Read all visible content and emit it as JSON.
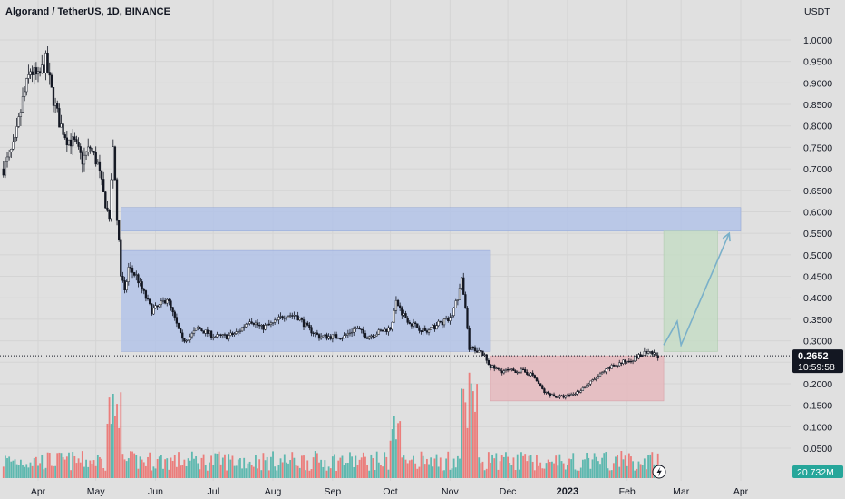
{
  "header": {
    "symbol_title": "Algorand / TetherUS, 1D, BINANCE"
  },
  "axis": {
    "currency": "USDT"
  },
  "colors": {
    "background": "#e0e0e0",
    "candle": "#131722",
    "volume_up": "#26a69a",
    "volume_down": "#ef5350",
    "blue_zone": "#b3c3e8",
    "red_zone": "#e5b8bd",
    "green_zone": "#c6dcc6",
    "arrow": "#7ab0c9",
    "price_badge": "#131722",
    "volume_badge": "#26a69a"
  },
  "badges": {
    "last_price": "0.2652",
    "countdown": "10:59:58",
    "volume": "20.732M"
  },
  "chart_data": {
    "type": "candlestick",
    "title": "Algorand / TetherUS, 1D, BINANCE",
    "ylabel": "USDT",
    "ylim": [
      0.0,
      1.05
    ],
    "y_ticks": [
      "1.0000",
      "0.9500",
      "0.9000",
      "0.8500",
      "0.8000",
      "0.7500",
      "0.7000",
      "0.6500",
      "0.6000",
      "0.5500",
      "0.5000",
      "0.4500",
      "0.4000",
      "0.3500",
      "0.3000",
      "0.2500",
      "0.2000",
      "0.1500",
      "0.1000",
      "0.0500"
    ],
    "y_tick_values": [
      1.0,
      0.95,
      0.9,
      0.85,
      0.8,
      0.75,
      0.7,
      0.65,
      0.6,
      0.55,
      0.5,
      0.45,
      0.4,
      0.35,
      0.3,
      0.25,
      0.2,
      0.15,
      0.1,
      0.05
    ],
    "x_ticks": [
      {
        "label": "Apr",
        "date": "2022-04-01",
        "bold": false
      },
      {
        "label": "May",
        "date": "2022-05-01",
        "bold": false
      },
      {
        "label": "Jun",
        "date": "2022-06-01",
        "bold": false
      },
      {
        "label": "Jul",
        "date": "2022-07-01",
        "bold": false
      },
      {
        "label": "Aug",
        "date": "2022-08-01",
        "bold": false
      },
      {
        "label": "Sep",
        "date": "2022-09-01",
        "bold": false
      },
      {
        "label": "Oct",
        "date": "2022-10-01",
        "bold": false
      },
      {
        "label": "Nov",
        "date": "2022-11-01",
        "bold": false
      },
      {
        "label": "Dec",
        "date": "2022-12-01",
        "bold": false
      },
      {
        "label": "2023",
        "date": "2023-01-01",
        "bold": true
      },
      {
        "label": "Feb",
        "date": "2023-02-01",
        "bold": false
      },
      {
        "label": "Mar",
        "date": "2023-03-01",
        "bold": false
      },
      {
        "label": "Apr",
        "date": "2023-04-01",
        "bold": false
      }
    ],
    "price_path": [
      [
        "2022-03-14",
        0.7
      ],
      [
        "2022-03-20",
        0.76
      ],
      [
        "2022-03-24",
        0.86
      ],
      [
        "2022-03-28",
        0.93
      ],
      [
        "2022-04-01",
        0.91
      ],
      [
        "2022-04-05",
        0.95
      ],
      [
        "2022-04-08",
        0.88
      ],
      [
        "2022-04-12",
        0.81
      ],
      [
        "2022-04-16",
        0.77
      ],
      [
        "2022-04-20",
        0.76
      ],
      [
        "2022-04-24",
        0.72
      ],
      [
        "2022-04-28",
        0.75
      ],
      [
        "2022-05-02",
        0.71
      ],
      [
        "2022-05-05",
        0.64
      ],
      [
        "2022-05-08",
        0.58
      ],
      [
        "2022-05-10",
        0.76
      ],
      [
        "2022-05-12",
        0.59
      ],
      [
        "2022-05-14",
        0.46
      ],
      [
        "2022-05-16",
        0.41
      ],
      [
        "2022-05-18",
        0.47
      ],
      [
        "2022-05-22",
        0.45
      ],
      [
        "2022-05-26",
        0.41
      ],
      [
        "2022-05-30",
        0.37
      ],
      [
        "2022-06-03",
        0.38
      ],
      [
        "2022-06-07",
        0.4
      ],
      [
        "2022-06-11",
        0.35
      ],
      [
        "2022-06-15",
        0.3
      ],
      [
        "2022-06-19",
        0.31
      ],
      [
        "2022-06-23",
        0.33
      ],
      [
        "2022-06-27",
        0.32
      ],
      [
        "2022-07-02",
        0.31
      ],
      [
        "2022-07-08",
        0.31
      ],
      [
        "2022-07-14",
        0.32
      ],
      [
        "2022-07-20",
        0.35
      ],
      [
        "2022-07-26",
        0.33
      ],
      [
        "2022-08-01",
        0.34
      ],
      [
        "2022-08-07",
        0.36
      ],
      [
        "2022-08-13",
        0.36
      ],
      [
        "2022-08-19",
        0.33
      ],
      [
        "2022-08-25",
        0.31
      ],
      [
        "2022-09-01",
        0.31
      ],
      [
        "2022-09-07",
        0.31
      ],
      [
        "2022-09-13",
        0.33
      ],
      [
        "2022-09-19",
        0.31
      ],
      [
        "2022-09-25",
        0.32
      ],
      [
        "2022-10-01",
        0.33
      ],
      [
        "2022-10-04",
        0.39
      ],
      [
        "2022-10-08",
        0.36
      ],
      [
        "2022-10-12",
        0.34
      ],
      [
        "2022-10-16",
        0.33
      ],
      [
        "2022-10-20",
        0.32
      ],
      [
        "2022-10-26",
        0.34
      ],
      [
        "2022-11-01",
        0.35
      ],
      [
        "2022-11-05",
        0.4
      ],
      [
        "2022-11-07",
        0.44
      ],
      [
        "2022-11-09",
        0.37
      ],
      [
        "2022-11-11",
        0.28
      ],
      [
        "2022-11-14",
        0.28
      ],
      [
        "2022-11-18",
        0.27
      ],
      [
        "2022-11-22",
        0.24
      ],
      [
        "2022-11-27",
        0.23
      ],
      [
        "2022-12-02",
        0.23
      ],
      [
        "2022-12-08",
        0.23
      ],
      [
        "2022-12-14",
        0.22
      ],
      [
        "2022-12-20",
        0.18
      ],
      [
        "2022-12-26",
        0.17
      ],
      [
        "2022-12-31",
        0.17
      ],
      [
        "2023-01-06",
        0.18
      ],
      [
        "2023-01-12",
        0.2
      ],
      [
        "2023-01-18",
        0.22
      ],
      [
        "2023-01-24",
        0.24
      ],
      [
        "2023-01-30",
        0.25
      ],
      [
        "2023-02-05",
        0.26
      ],
      [
        "2023-02-10",
        0.27
      ],
      [
        "2023-02-14",
        0.27
      ],
      [
        "2023-02-17",
        0.265
      ]
    ],
    "last_price": 0.2652,
    "annotations": [
      {
        "type": "zone",
        "color": "blue",
        "x_start": "2022-05-14",
        "x_end": "2023-04-01",
        "y_low": 0.555,
        "y_high": 0.61
      },
      {
        "type": "zone",
        "color": "blue",
        "x_start": "2022-05-14",
        "x_end": "2022-11-22",
        "y_low": 0.275,
        "y_high": 0.51
      },
      {
        "type": "zone",
        "color": "red",
        "x_start": "2022-11-22",
        "x_end": "2023-02-20",
        "y_low": 0.16,
        "y_high": 0.265
      },
      {
        "type": "zone",
        "color": "green",
        "x_start": "2023-02-20",
        "x_end": "2023-03-20",
        "y_low": 0.275,
        "y_high": 0.555
      },
      {
        "type": "projection",
        "points": [
          [
            "2023-02-20",
            0.29
          ],
          [
            "2023-02-27",
            0.345
          ],
          [
            "2023-03-01",
            0.29
          ],
          [
            "2023-03-26",
            0.55
          ]
        ]
      }
    ],
    "grid": true
  }
}
